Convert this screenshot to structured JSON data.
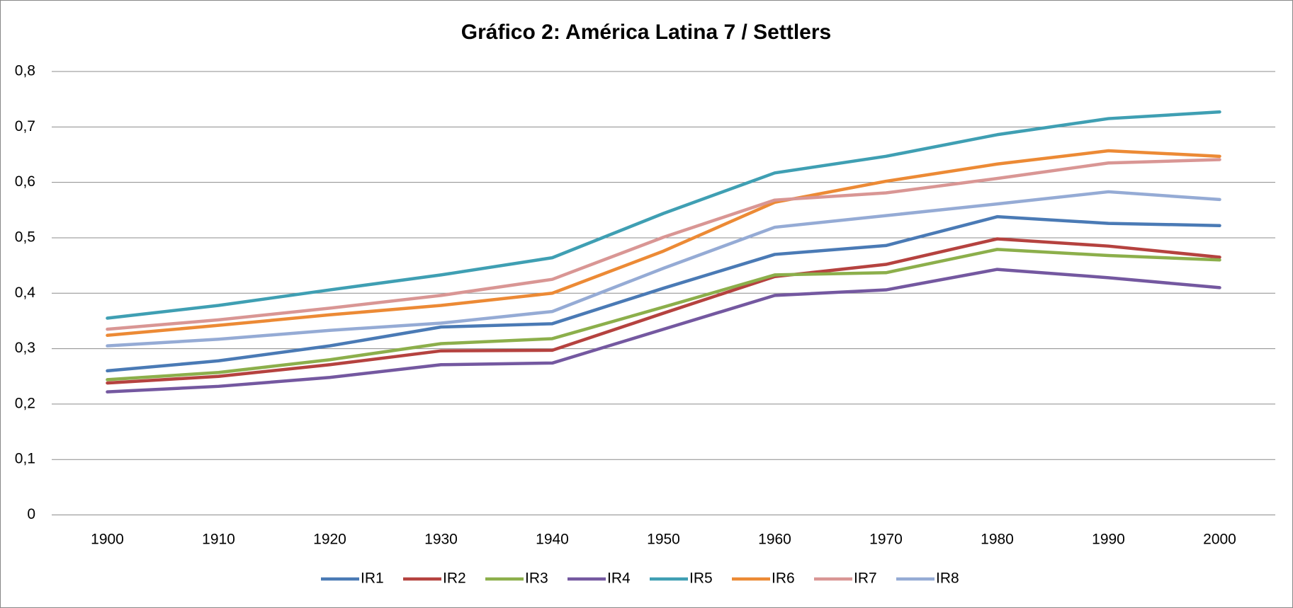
{
  "chart_data": {
    "type": "line",
    "title": "Gráfico 2: América Latina 7 / Settlers",
    "categories": [
      "1900",
      "1910",
      "1920",
      "1930",
      "1940",
      "1950",
      "1960",
      "1970",
      "1980",
      "1990",
      "2000"
    ],
    "ylim": [
      0,
      0.8
    ],
    "yticks": [
      {
        "value": 0,
        "label": "0"
      },
      {
        "value": 0.1,
        "label": "0,1"
      },
      {
        "value": 0.2,
        "label": "0,2"
      },
      {
        "value": 0.3,
        "label": "0,3"
      },
      {
        "value": 0.4,
        "label": "0,4"
      },
      {
        "value": 0.5,
        "label": "0,5"
      },
      {
        "value": 0.6,
        "label": "0,6"
      },
      {
        "value": 0.7,
        "label": "0,7"
      },
      {
        "value": 0.8,
        "label": "0,8"
      }
    ],
    "grid": true,
    "legend": "bottom",
    "series": [
      {
        "name": "IR1",
        "color": "#4a7ab5",
        "values": [
          0.26,
          0.278,
          0.305,
          0.339,
          0.345,
          0.409,
          0.47,
          0.486,
          0.538,
          0.526,
          0.522
        ]
      },
      {
        "name": "IR2",
        "color": "#b5423f",
        "values": [
          0.238,
          0.25,
          0.271,
          0.296,
          0.297,
          0.364,
          0.43,
          0.452,
          0.498,
          0.485,
          0.465
        ]
      },
      {
        "name": "IR3",
        "color": "#8caf4b",
        "values": [
          0.244,
          0.257,
          0.28,
          0.309,
          0.318,
          0.375,
          0.433,
          0.437,
          0.479,
          0.468,
          0.46
        ]
      },
      {
        "name": "IR4",
        "color": "#7458a0",
        "values": [
          0.222,
          0.232,
          0.248,
          0.271,
          0.274,
          0.335,
          0.396,
          0.406,
          0.443,
          0.428,
          0.41
        ]
      },
      {
        "name": "IR5",
        "color": "#3f9fb3",
        "values": [
          0.355,
          0.378,
          0.406,
          0.433,
          0.464,
          0.544,
          0.617,
          0.647,
          0.686,
          0.715,
          0.727
        ]
      },
      {
        "name": "IR6",
        "color": "#ec8a35",
        "values": [
          0.324,
          0.342,
          0.361,
          0.378,
          0.4,
          0.476,
          0.564,
          0.602,
          0.633,
          0.657,
          0.647
        ]
      },
      {
        "name": "IR7",
        "color": "#d99694",
        "values": [
          0.335,
          0.352,
          0.373,
          0.396,
          0.425,
          0.501,
          0.568,
          0.581,
          0.607,
          0.635,
          0.641
        ]
      },
      {
        "name": "IR8",
        "color": "#95abd5",
        "values": [
          0.305,
          0.317,
          0.333,
          0.346,
          0.367,
          0.445,
          0.519,
          0.54,
          0.561,
          0.583,
          0.569
        ]
      }
    ]
  }
}
